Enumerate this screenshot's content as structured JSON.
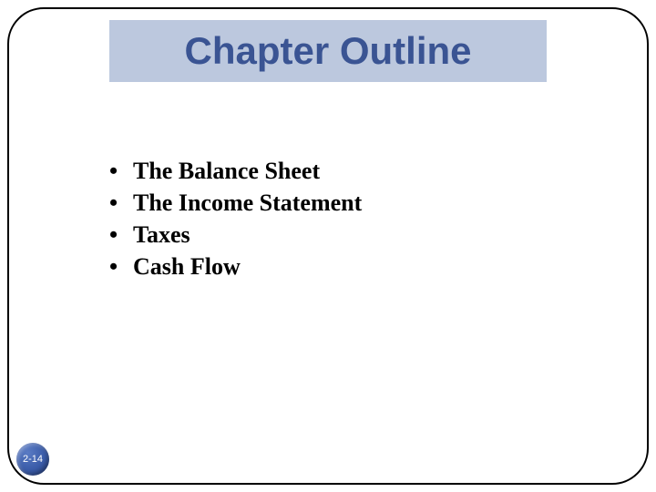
{
  "slide": {
    "title": "Chapter Outline",
    "title_fontsize": 42,
    "title_color": "#3a5493",
    "title_bg": "#bcc8de",
    "bullets": [
      "The Balance Sheet",
      "The Income Statement",
      "Taxes",
      "Cash Flow"
    ],
    "bullet_fontsize": 26,
    "bullet_color": "#000000",
    "page_label": "2-14",
    "frame_border_color": "#000000",
    "frame_border_radius": 40,
    "background_color": "#ffffff",
    "badge_gradient": [
      "#5a7bc4",
      "#3a5ba8",
      "#23396e"
    ]
  }
}
